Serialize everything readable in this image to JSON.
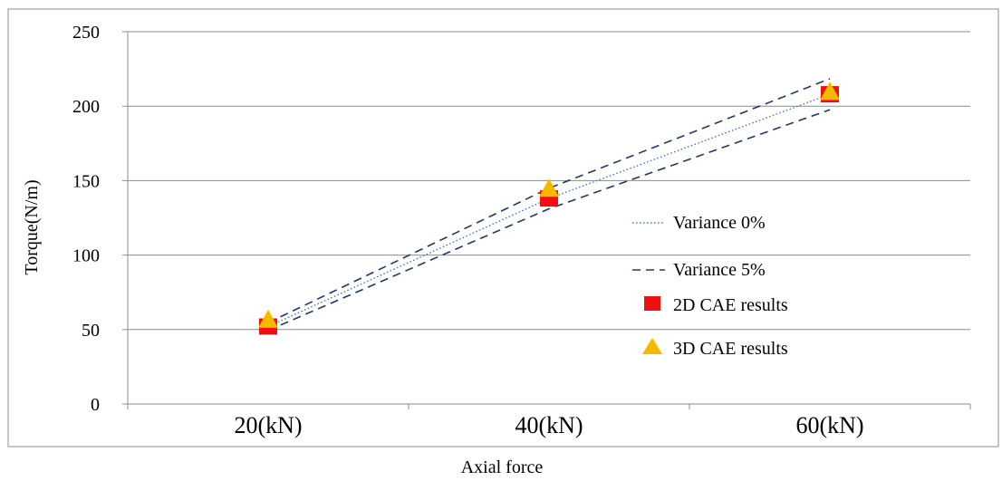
{
  "chart_data": {
    "type": "line",
    "categories": [
      "20(kN)",
      "40(kN)",
      "60(kN)"
    ],
    "xlabel": "Axial force",
    "ylabel": "Torque(N/m)",
    "ylim": [
      0,
      250
    ],
    "yticks": [
      0,
      50,
      100,
      150,
      200,
      250
    ],
    "grid": "horizontal",
    "legend_placement": "right",
    "series": [
      {
        "name": "Variance 0%",
        "style": "dotted",
        "color": "#4a72b8",
        "values": [
          52,
          138,
          208
        ]
      },
      {
        "name": "Variance 5%",
        "style": "dashed",
        "color": "#1f3864",
        "values": [
          54.6,
          144.9,
          218.4
        ]
      },
      {
        "name": "",
        "style": "dashed",
        "color": "#1f3864",
        "values": [
          49.4,
          131.1,
          197.6
        ]
      },
      {
        "name": "2D CAE results",
        "style": "marker-square",
        "color": "#ee1111",
        "values": [
          52,
          138,
          208
        ]
      },
      {
        "name": "3D CAE results",
        "style": "marker-triangle",
        "color": "#f5b800",
        "values": [
          56,
          144,
          209
        ]
      }
    ]
  }
}
